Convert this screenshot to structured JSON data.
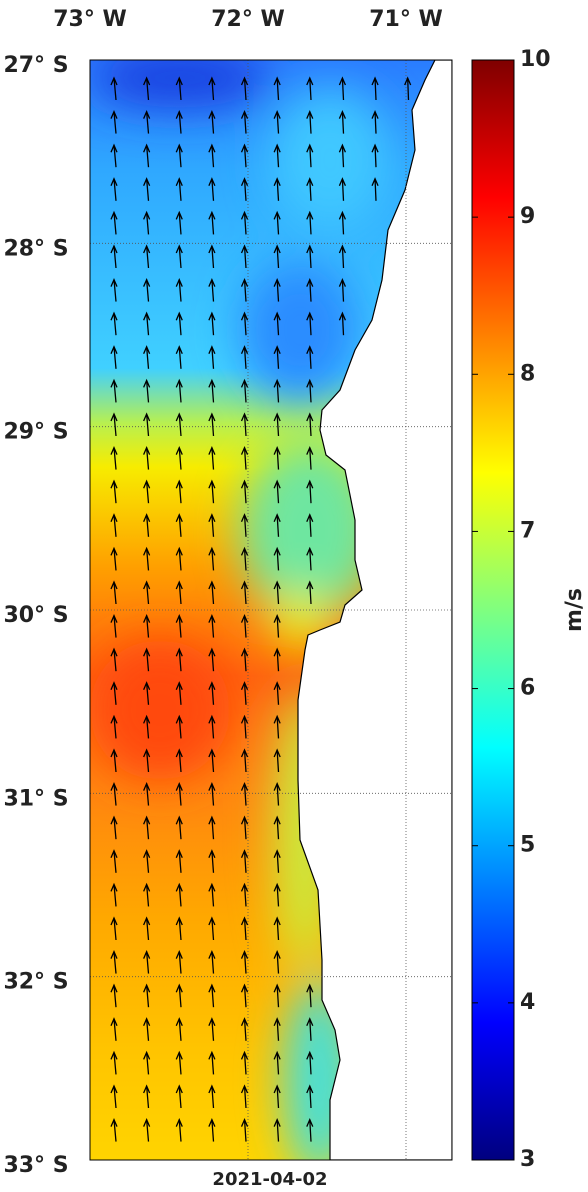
{
  "map": {
    "longitude_labels": [
      "73° W",
      "72° W",
      "71° W"
    ],
    "latitude_labels": [
      "27° S",
      "28° S",
      "29° S",
      "30° S",
      "31° S",
      "32° S",
      "33° S"
    ],
    "date": "2021-04-02"
  },
  "colorbar": {
    "label": "m/s",
    "lim": [
      3,
      10
    ],
    "ticks": [
      3,
      4,
      5,
      6,
      7,
      8,
      9,
      10
    ]
  }
}
